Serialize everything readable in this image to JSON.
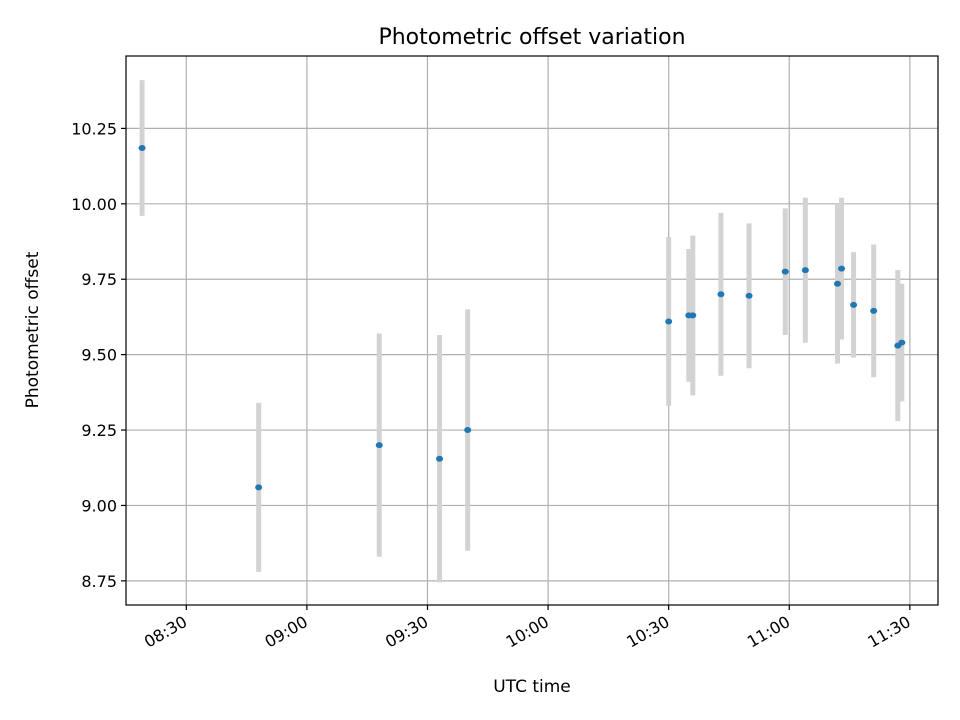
{
  "chart_data": {
    "type": "scatter",
    "title": "Photometric offset variation",
    "xlabel": "UTC time",
    "ylabel": "Photometric offset",
    "grid": true,
    "legend": "none",
    "xlim": [
      "08:15",
      "11:37"
    ],
    "ylim": [
      8.67,
      10.49
    ],
    "x_ticks": [
      "08:30",
      "09:00",
      "09:30",
      "10:00",
      "10:30",
      "11:00",
      "11:30"
    ],
    "y_ticks": [
      "8.75",
      "9.00",
      "9.25",
      "9.50",
      "9.75",
      "10.00",
      "10.25"
    ],
    "colors": {
      "point": "#1f77b4",
      "errorbar": "#d3d3d3",
      "grid": "#b0b0b0"
    },
    "series": [
      {
        "points": [
          {
            "x": "08:19",
            "y": 10.185,
            "err": 0.225
          },
          {
            "x": "08:48",
            "y": 9.06,
            "err": 0.28
          },
          {
            "x": "09:18",
            "y": 9.2,
            "err": 0.37
          },
          {
            "x": "09:33",
            "y": 9.155,
            "err": 0.41
          },
          {
            "x": "09:40",
            "y": 9.25,
            "err": 0.4
          },
          {
            "x": "10:30",
            "y": 9.61,
            "err": 0.28
          },
          {
            "x": "10:35",
            "y": 9.63,
            "err": 0.22
          },
          {
            "x": "10:36",
            "y": 9.63,
            "err": 0.265
          },
          {
            "x": "10:43",
            "y": 9.7,
            "err": 0.27
          },
          {
            "x": "10:50",
            "y": 9.695,
            "err": 0.24
          },
          {
            "x": "10:59",
            "y": 9.775,
            "err": 0.21
          },
          {
            "x": "11:04",
            "y": 9.78,
            "err": 0.24
          },
          {
            "x": "11:12",
            "y": 9.735,
            "err": 0.265
          },
          {
            "x": "11:13",
            "y": 9.785,
            "err": 0.235
          },
          {
            "x": "11:16",
            "y": 9.665,
            "err": 0.175
          },
          {
            "x": "11:21",
            "y": 9.645,
            "err": 0.22
          },
          {
            "x": "11:27",
            "y": 9.53,
            "err": 0.25
          },
          {
            "x": "11:28",
            "y": 9.54,
            "err": 0.195
          }
        ]
      }
    ]
  }
}
